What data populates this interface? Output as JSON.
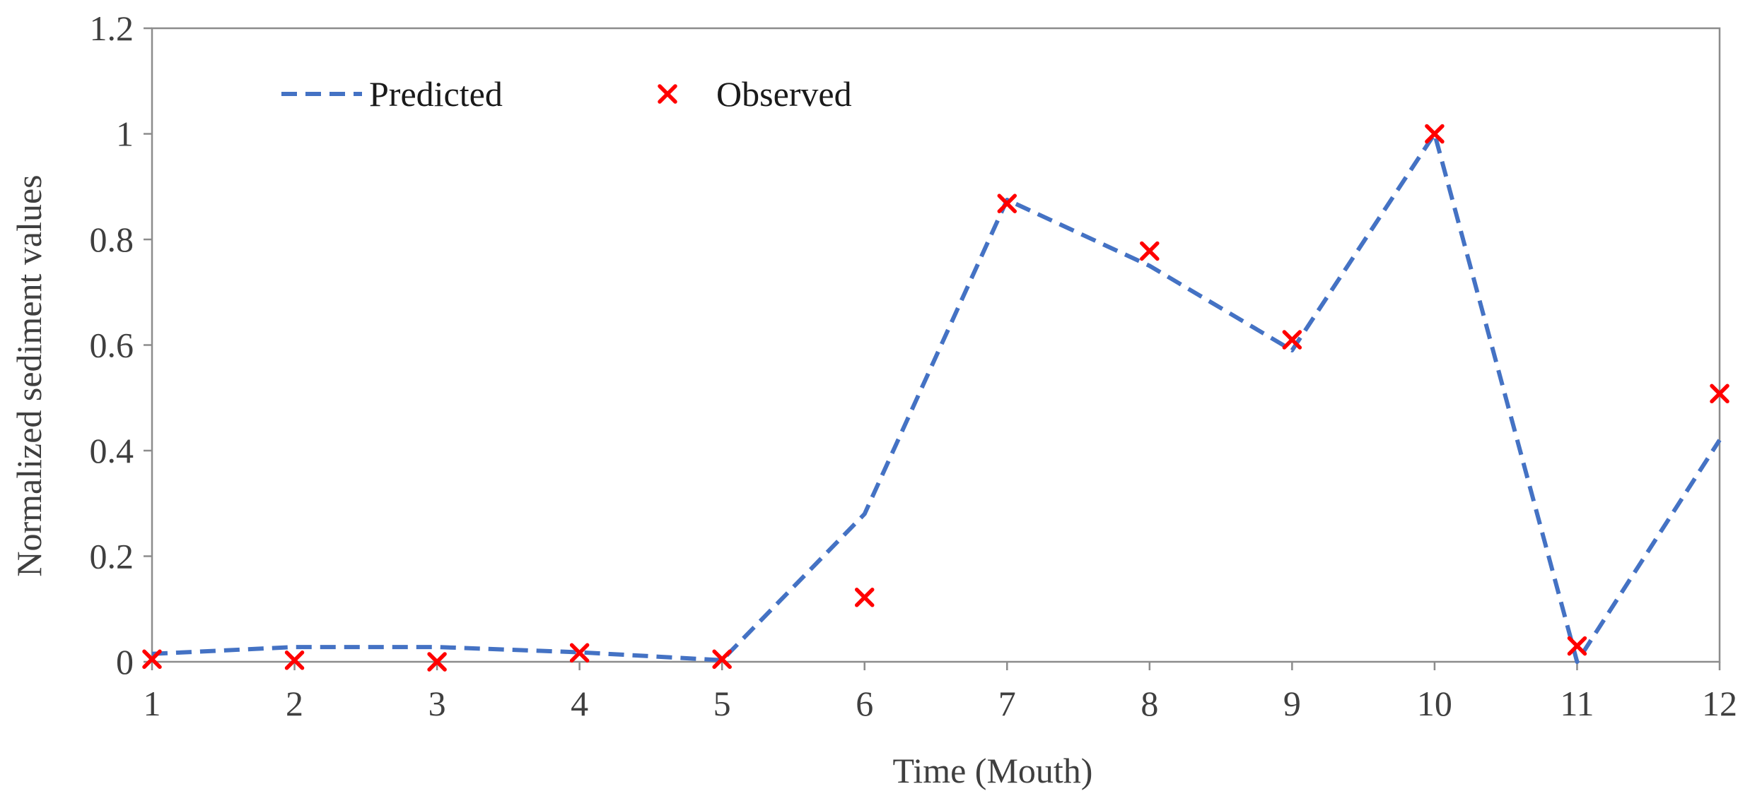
{
  "chart_data": {
    "type": "line",
    "title": "",
    "xlabel": "Time (Mouth)",
    "ylabel": "Normalized sediment values",
    "categories": [
      1,
      2,
      3,
      4,
      5,
      6,
      7,
      8,
      9,
      10,
      11,
      12
    ],
    "x_tick_labels": [
      "1",
      "2",
      "3",
      "4",
      "5",
      "6",
      "7",
      "8",
      "9",
      "10",
      "11",
      "12"
    ],
    "y_tick_labels": [
      "0",
      "0.2",
      "0.4",
      "0.6",
      "0.8",
      "1",
      "1.2"
    ],
    "y_ticks": [
      0,
      0.2,
      0.4,
      0.6,
      0.8,
      1.0,
      1.2
    ],
    "xlim": [
      1,
      12
    ],
    "ylim": [
      0,
      1.2
    ],
    "grid": false,
    "legend_position": "top-left",
    "series": [
      {
        "name": "Predicted",
        "style": "dashed-line",
        "color": "#4472C4",
        "x": [
          1,
          2,
          3,
          4,
          5,
          6,
          7,
          8,
          9,
          10,
          11,
          12
        ],
        "values": [
          0.015,
          0.028,
          0.028,
          0.018,
          0.003,
          0.28,
          0.875,
          0.75,
          0.59,
          1.0,
          0.0,
          0.42
        ]
      },
      {
        "name": "Observed",
        "style": "x-marker",
        "color": "#FF0000",
        "x": [
          1,
          2,
          3,
          4,
          5,
          6,
          7,
          8,
          9,
          10,
          11,
          12
        ],
        "values": [
          0.005,
          0.003,
          0.0,
          0.017,
          0.005,
          0.122,
          0.868,
          0.778,
          0.61,
          1.0,
          0.03,
          0.508
        ]
      }
    ]
  }
}
